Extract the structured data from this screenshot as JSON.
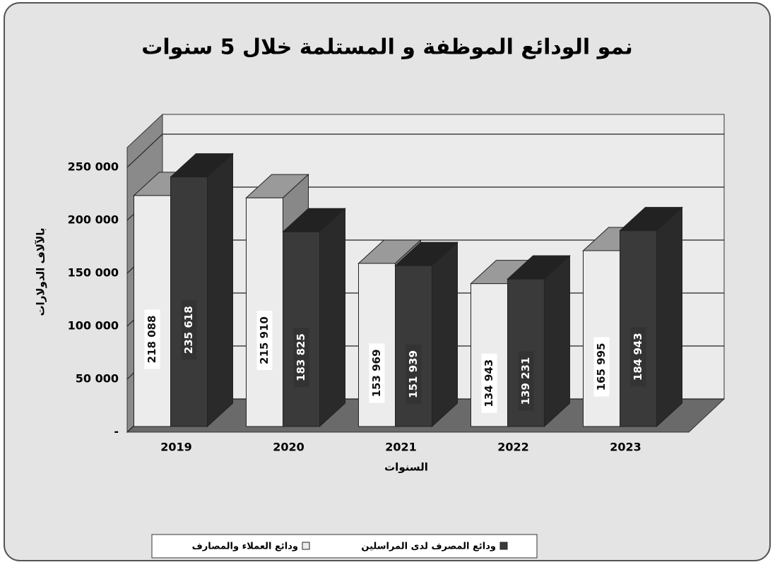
{
  "chart_data": {
    "type": "bar3d",
    "title": "نمو الودائع الموظفة و المستلمة خلال 5 سنوات",
    "y_label": "بالآلاف الدولارات",
    "x_label": "السنوات",
    "categories": [
      "2019",
      "2020",
      "2021",
      "2022",
      "2023"
    ],
    "series": [
      {
        "name": "ودائع العملاء والمصارف",
        "color": "#ececec",
        "values": [
          218088,
          215910,
          153969,
          134943,
          165995
        ],
        "value_labels": [
          "218 088",
          "215 910",
          "153 969",
          "134 943",
          "165 995"
        ]
      },
      {
        "name": "ودائع المصرف لدى المراسلين",
        "color": "#3a3a3a",
        "values": [
          235618,
          183825,
          151939,
          139231,
          184943
        ],
        "value_labels": [
          "235 618",
          "183 825",
          "151 939",
          "139 231",
          "184 943"
        ]
      }
    ],
    "ylim": [
      0,
      300000
    ],
    "yticks": [
      {
        "value": 0,
        "label": "-"
      },
      {
        "value": 50000,
        "label": "50 000"
      },
      {
        "value": 100000,
        "label": "100 000"
      },
      {
        "value": 150000,
        "label": "150 000"
      },
      {
        "value": 200000,
        "label": "200 000"
      },
      {
        "value": 250000,
        "label": "250 000"
      }
    ],
    "grid": true,
    "legend": "bottom"
  }
}
